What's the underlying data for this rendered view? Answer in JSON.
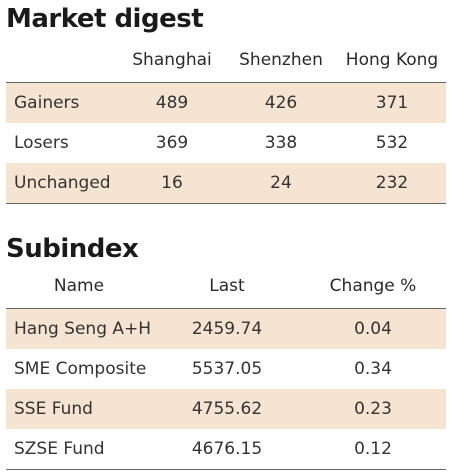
{
  "market_digest": {
    "title": "Market digest",
    "columns": [
      "Shanghai",
      "Shenzhen",
      "Hong Kong"
    ],
    "rows": [
      {
        "label": "Gainers",
        "values": [
          "489",
          "426",
          "371"
        ]
      },
      {
        "label": "Losers",
        "values": [
          "369",
          "338",
          "532"
        ]
      },
      {
        "label": "Unchanged",
        "values": [
          "16",
          "24",
          "232"
        ]
      }
    ]
  },
  "subindex": {
    "title": "Subindex",
    "columns": [
      "Name",
      "Last",
      "Change %"
    ],
    "rows": [
      {
        "name": "Hang Seng A+H",
        "last": "2459.74",
        "change": "0.04"
      },
      {
        "name": "SME Composite",
        "last": "5537.05",
        "change": "0.34"
      },
      {
        "name": "SSE Fund",
        "last": "4755.62",
        "change": "0.23"
      },
      {
        "name": "SZSE Fund",
        "last": "4676.15",
        "change": "0.12"
      }
    ]
  },
  "colors": {
    "row_shade": "#f6e4d3",
    "rule": "#666666"
  }
}
